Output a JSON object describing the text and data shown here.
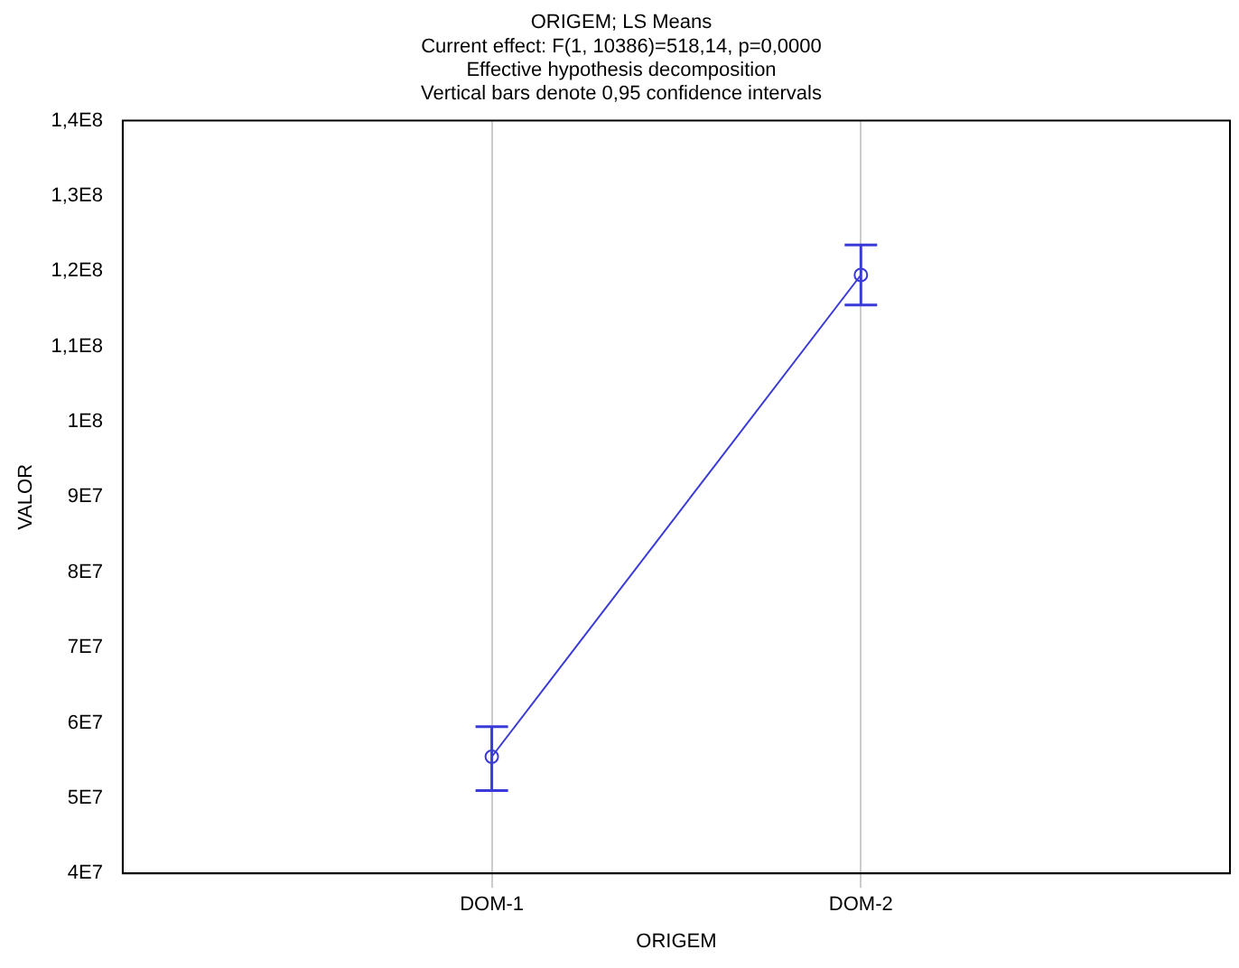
{
  "chart_data": {
    "type": "line",
    "title": "ORIGEM; LS Means",
    "subtitle": "Current effect: F(1, 10386)=518,14, p=0,0000",
    "annotations": [
      "Effective hypothesis decomposition",
      "Vertical bars denote 0,95 confidence intervals"
    ],
    "xlabel": "ORIGEM",
    "ylabel": "VALOR",
    "categories": [
      "DOM-1",
      "DOM-2"
    ],
    "series": [
      {
        "color": "#3a3ad8",
        "values": [
          55500000,
          119500000
        ],
        "errors": [
          [
            51000000,
            59500000
          ],
          [
            115500000,
            123500000
          ]
        ]
      }
    ],
    "ylim": [
      40000000,
      140000000
    ],
    "yticks": [
      {
        "value": 40000000,
        "label": "4E7"
      },
      {
        "value": 50000000,
        "label": "5E7"
      },
      {
        "value": 60000000,
        "label": "6E7"
      },
      {
        "value": 70000000,
        "label": "7E7"
      },
      {
        "value": 80000000,
        "label": "8E7"
      },
      {
        "value": 90000000,
        "label": "9E7"
      },
      {
        "value": 100000000,
        "label": "1E8"
      },
      {
        "value": 110000000,
        "label": "1,1E8"
      },
      {
        "value": 120000000,
        "label": "1,2E8"
      },
      {
        "value": 130000000,
        "label": "1,3E8"
      },
      {
        "value": 140000000,
        "label": "1,4E8"
      }
    ],
    "grid": "x",
    "legend": false,
    "marker": "circle",
    "line_style": "solid"
  }
}
